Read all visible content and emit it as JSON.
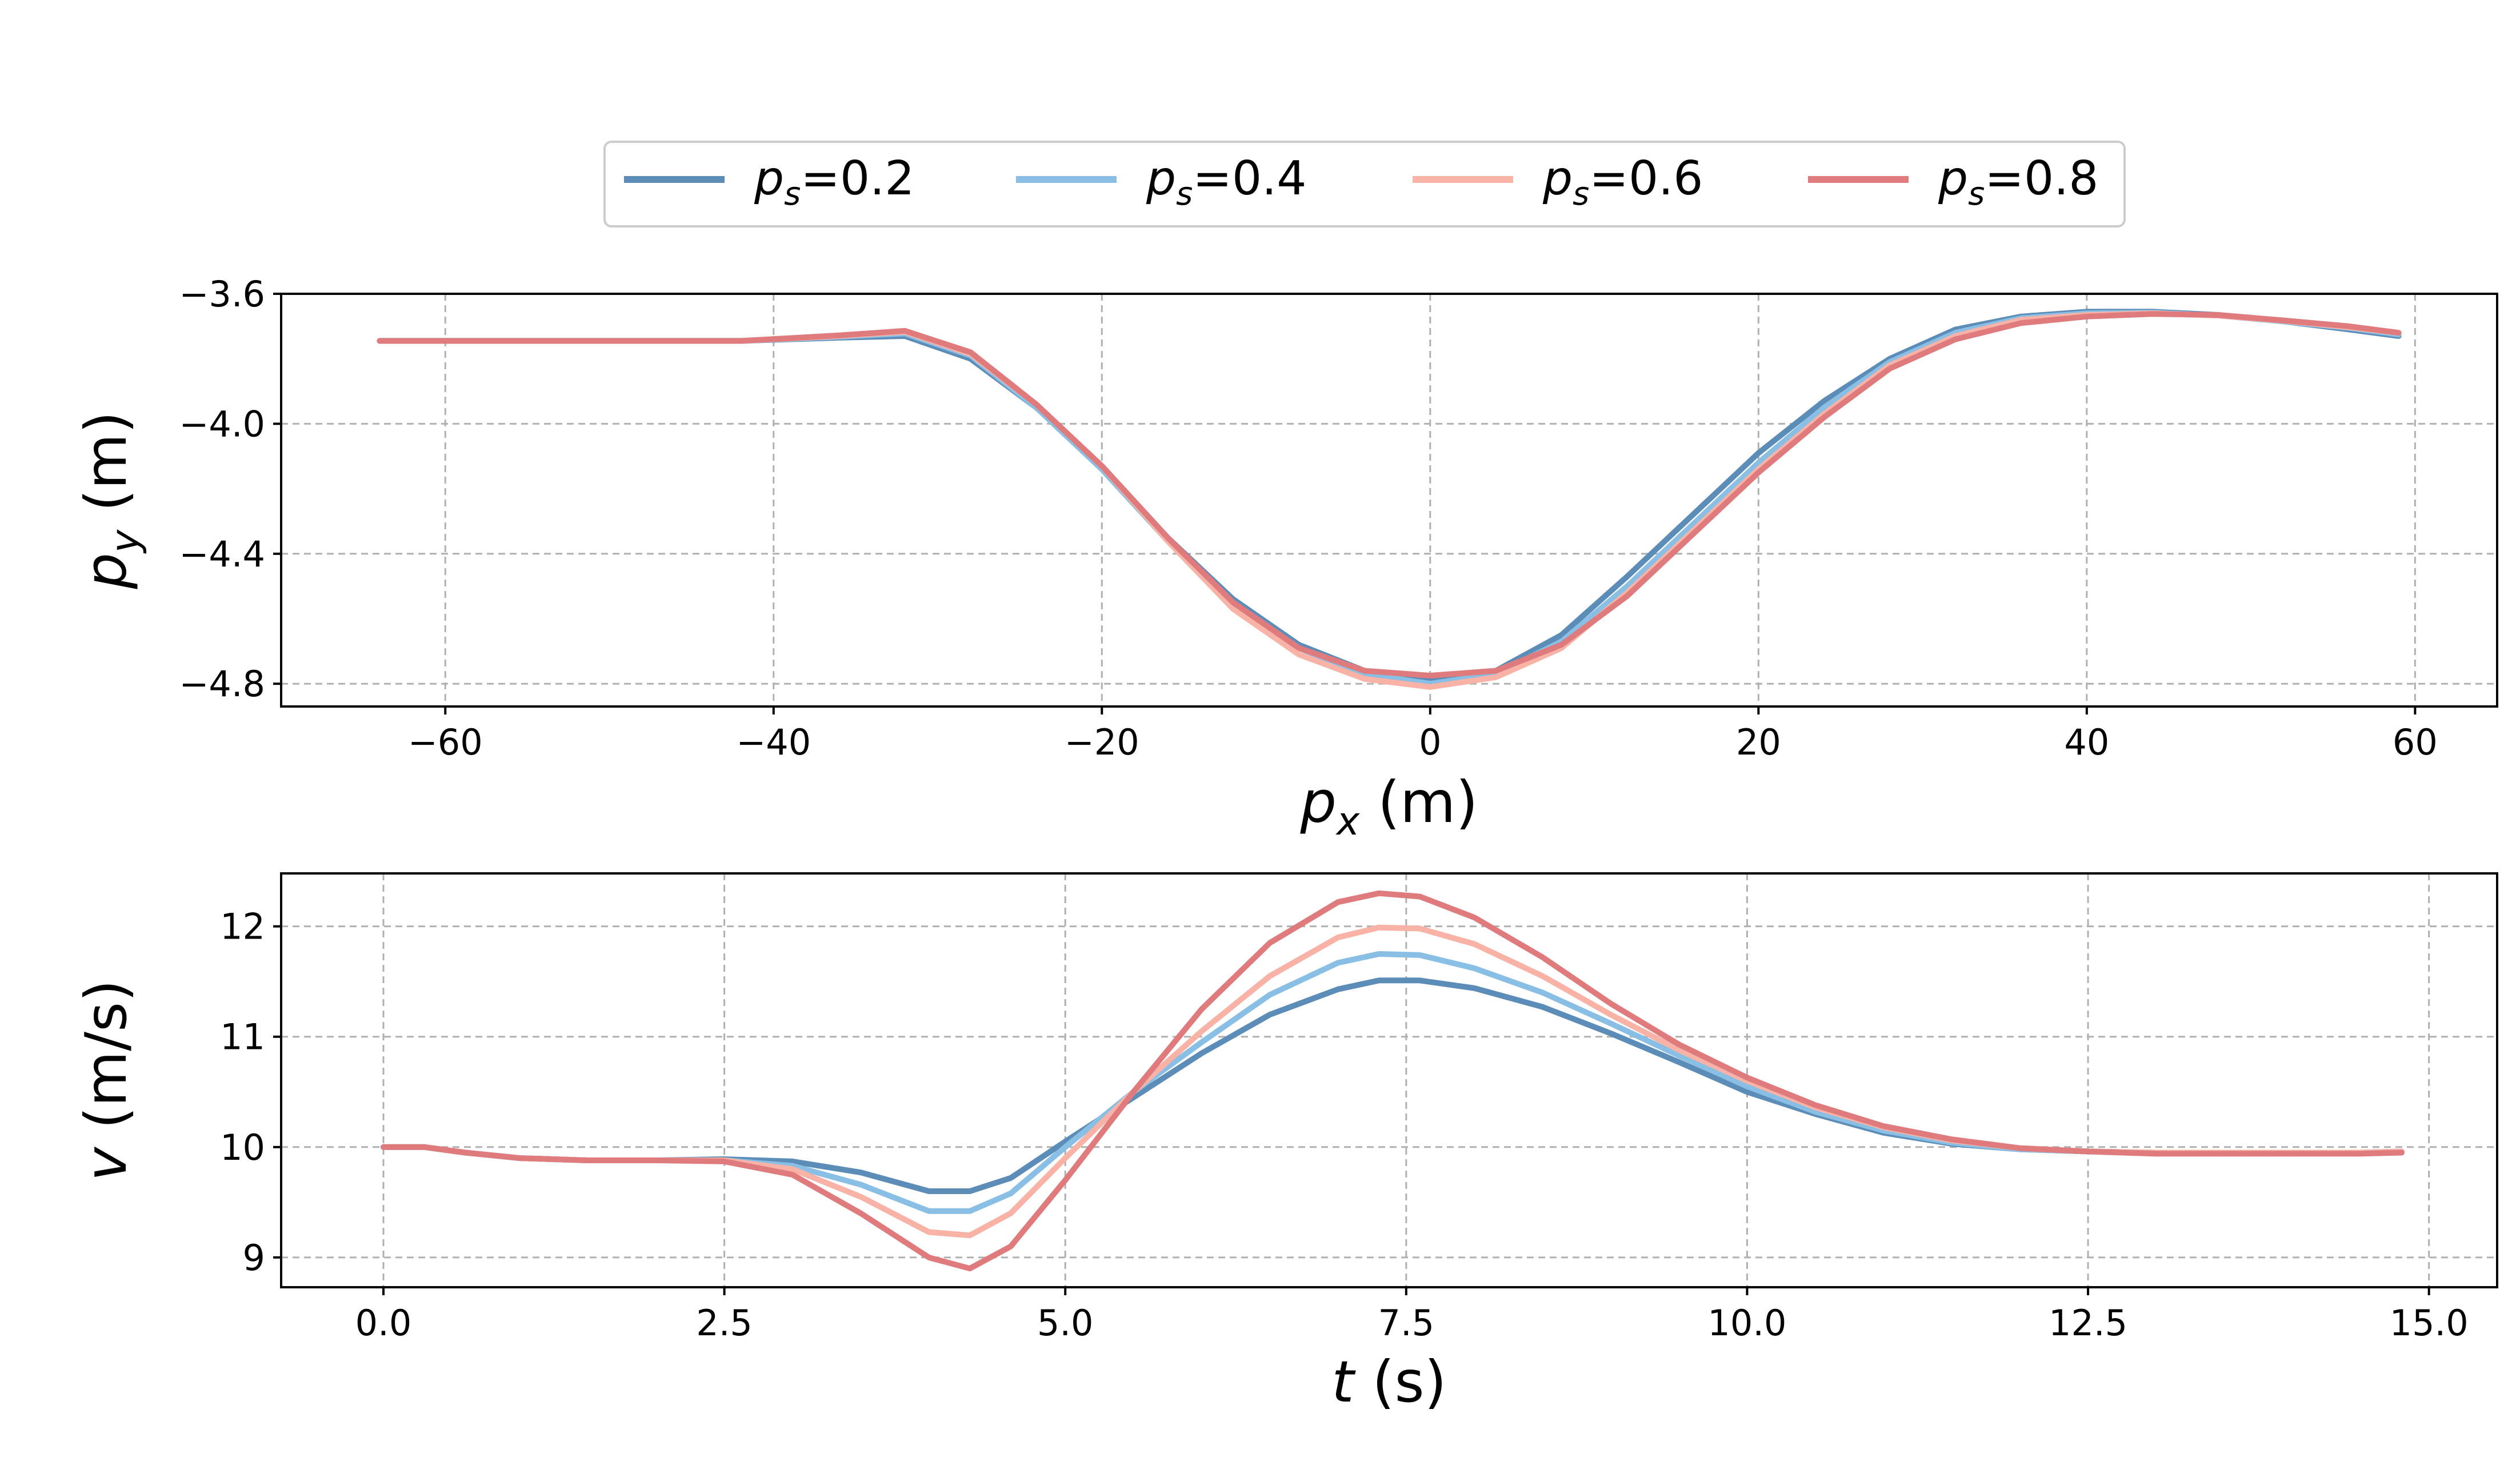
{
  "chart_data": [
    {
      "type": "line",
      "xlabel_italic": "p",
      "xlabel_sub": "x",
      "xlabel_unit": " (m)",
      "ylabel_italic": "p",
      "ylabel_sub": "y",
      "ylabel_unit": " (m)",
      "xlim": [
        -70,
        65
      ],
      "ylim": [
        -4.87,
        -3.6
      ],
      "xticks": [
        -60,
        -40,
        -20,
        0,
        20,
        40,
        60
      ],
      "xtick_labels": [
        "−60",
        "−40",
        "−20",
        "0",
        "20",
        "40",
        "60"
      ],
      "yticks": [
        -3.6,
        -4.0,
        -4.4,
        -4.8
      ],
      "ytick_labels": [
        "−3.6",
        "−4.0",
        "−4.4",
        "−4.8"
      ],
      "grid": true,
      "x": [
        -64,
        -50,
        -42,
        -36,
        -32,
        -28,
        -24,
        -20,
        -16,
        -12,
        -8,
        -4,
        0,
        4,
        8,
        12,
        16,
        20,
        24,
        28,
        32,
        36,
        40,
        44,
        48,
        52,
        56,
        59
      ],
      "series": [
        {
          "name": "p_s=0.2",
          "color": "#5b8db8",
          "values": [
            -3.745,
            -3.745,
            -3.745,
            -3.735,
            -3.73,
            -3.8,
            -3.95,
            -4.13,
            -4.35,
            -4.54,
            -4.68,
            -4.76,
            -4.79,
            -4.76,
            -4.65,
            -4.47,
            -4.28,
            -4.09,
            -3.93,
            -3.8,
            -3.71,
            -3.67,
            -3.655,
            -3.655,
            -3.665,
            -3.685,
            -3.71,
            -3.73
          ]
        },
        {
          "name": "p_s=0.4",
          "color": "#89bfe4",
          "values": [
            -3.745,
            -3.745,
            -3.745,
            -3.732,
            -3.722,
            -3.79,
            -3.95,
            -4.14,
            -4.36,
            -4.55,
            -4.69,
            -4.77,
            -4.8,
            -4.77,
            -4.67,
            -4.5,
            -4.31,
            -4.12,
            -3.95,
            -3.81,
            -3.72,
            -3.675,
            -3.66,
            -3.658,
            -3.667,
            -3.685,
            -3.705,
            -3.725
          ]
        },
        {
          "name": "p_s=0.6",
          "color": "#f8b2a6",
          "values": [
            -3.745,
            -3.745,
            -3.745,
            -3.73,
            -3.717,
            -3.785,
            -3.94,
            -4.13,
            -4.36,
            -4.57,
            -4.71,
            -4.785,
            -4.81,
            -4.78,
            -4.69,
            -4.52,
            -4.33,
            -4.14,
            -3.97,
            -3.82,
            -3.73,
            -3.68,
            -3.665,
            -3.66,
            -3.667,
            -3.683,
            -3.703,
            -3.72
          ]
        },
        {
          "name": "p_s=0.8",
          "color": "#e07b7d",
          "values": [
            -3.745,
            -3.745,
            -3.745,
            -3.728,
            -3.714,
            -3.78,
            -3.94,
            -4.13,
            -4.35,
            -4.55,
            -4.69,
            -4.76,
            -4.775,
            -4.76,
            -4.68,
            -4.53,
            -4.34,
            -4.15,
            -3.98,
            -3.83,
            -3.74,
            -3.69,
            -3.67,
            -3.662,
            -3.665,
            -3.682,
            -3.7,
            -3.72
          ]
        }
      ]
    },
    {
      "type": "line",
      "xlabel_italic": "t",
      "xlabel_unit": " (s)",
      "ylabel_italic": "v",
      "ylabel_unit": " (m/s)",
      "xlim": [
        -0.75,
        15.5
      ],
      "ylim": [
        8.73,
        12.48
      ],
      "xticks": [
        0,
        2.5,
        5,
        7.5,
        10,
        12.5,
        15
      ],
      "xtick_labels": [
        "0.0",
        "2.5",
        "5.0",
        "7.5",
        "10.0",
        "12.5",
        "15.0"
      ],
      "yticks": [
        9,
        10,
        11,
        12
      ],
      "ytick_labels": [
        "9",
        "10",
        "11",
        "12"
      ],
      "grid": true,
      "x": [
        0,
        0.3,
        0.6,
        1.0,
        1.5,
        2.0,
        2.5,
        3.0,
        3.5,
        4.0,
        4.3,
        4.6,
        5.0,
        5.5,
        6.0,
        6.5,
        7.0,
        7.3,
        7.6,
        8.0,
        8.5,
        9.0,
        9.5,
        10.0,
        10.5,
        11.0,
        11.5,
        12.0,
        12.5,
        13.0,
        13.5,
        14.0,
        14.5,
        14.8
      ],
      "series": [
        {
          "name": "p_s=0.2",
          "color": "#5b8db8",
          "values": [
            10.0,
            10.0,
            9.95,
            9.9,
            9.88,
            9.88,
            9.89,
            9.87,
            9.77,
            9.6,
            9.6,
            9.72,
            10.05,
            10.45,
            10.85,
            11.2,
            11.43,
            11.51,
            11.51,
            11.44,
            11.27,
            11.03,
            10.77,
            10.5,
            10.3,
            10.13,
            10.03,
            9.98,
            9.96,
            9.95,
            9.95,
            9.95,
            9.95,
            9.96
          ]
        },
        {
          "name": "p_s=0.4",
          "color": "#89bfe4",
          "values": [
            10.0,
            10.0,
            9.95,
            9.9,
            9.88,
            9.88,
            9.88,
            9.83,
            9.66,
            9.42,
            9.42,
            9.58,
            10.0,
            10.5,
            10.95,
            11.38,
            11.67,
            11.75,
            11.74,
            11.62,
            11.4,
            11.12,
            10.83,
            10.55,
            10.32,
            10.15,
            10.04,
            9.98,
            9.96,
            9.95,
            9.95,
            9.95,
            9.95,
            9.96
          ]
        },
        {
          "name": "p_s=0.6",
          "color": "#f8b2a6",
          "values": [
            10.0,
            10.0,
            9.95,
            9.9,
            9.88,
            9.88,
            9.88,
            9.8,
            9.55,
            9.23,
            9.2,
            9.4,
            9.9,
            10.5,
            11.05,
            11.55,
            11.9,
            11.99,
            11.98,
            11.84,
            11.55,
            11.2,
            10.88,
            10.6,
            10.36,
            10.18,
            10.06,
            9.99,
            9.96,
            9.95,
            9.95,
            9.95,
            9.95,
            9.96
          ]
        },
        {
          "name": "p_s=0.8",
          "color": "#e07b7d",
          "values": [
            10.0,
            10.0,
            9.95,
            9.9,
            9.88,
            9.88,
            9.87,
            9.75,
            9.4,
            9.0,
            8.9,
            9.1,
            9.7,
            10.5,
            11.25,
            11.85,
            12.22,
            12.3,
            12.27,
            12.08,
            11.72,
            11.3,
            10.93,
            10.63,
            10.38,
            10.19,
            10.07,
            9.99,
            9.96,
            9.94,
            9.94,
            9.94,
            9.94,
            9.95
          ]
        }
      ]
    }
  ],
  "legend": {
    "placement": "top-center",
    "entries": [
      {
        "italic": "p",
        "sub": "s",
        "value": "=0.2",
        "color": "#5b8db8"
      },
      {
        "italic": "p",
        "sub": "s",
        "value": "=0.4",
        "color": "#89bfe4"
      },
      {
        "italic": "p",
        "sub": "s",
        "value": "=0.6",
        "color": "#f8b2a6"
      },
      {
        "italic": "p",
        "sub": "s",
        "value": "=0.8",
        "color": "#e07b7d"
      }
    ]
  }
}
